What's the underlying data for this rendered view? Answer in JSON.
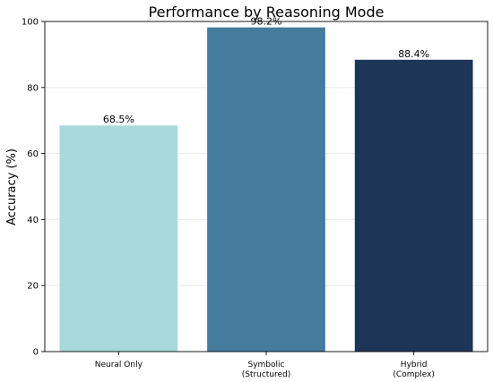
{
  "chart_data": {
    "type": "bar",
    "title": "Performance by Reasoning Mode",
    "xlabel": "",
    "ylabel": "Accuracy (%)",
    "ylim": [
      0,
      100
    ],
    "yticks": [
      0,
      20,
      40,
      60,
      80,
      100
    ],
    "grid": "horizontal",
    "categories": [
      [
        "Neural Only"
      ],
      [
        "Symbolic",
        "(Structured)"
      ],
      [
        "Hybrid",
        "(Complex)"
      ]
    ],
    "values": [
      68.5,
      98.2,
      88.4
    ],
    "value_labels": [
      "68.5%",
      "98.2%",
      "88.4%"
    ],
    "colors": [
      "#a8dadc",
      "#457b9d",
      "#1d3557"
    ]
  }
}
